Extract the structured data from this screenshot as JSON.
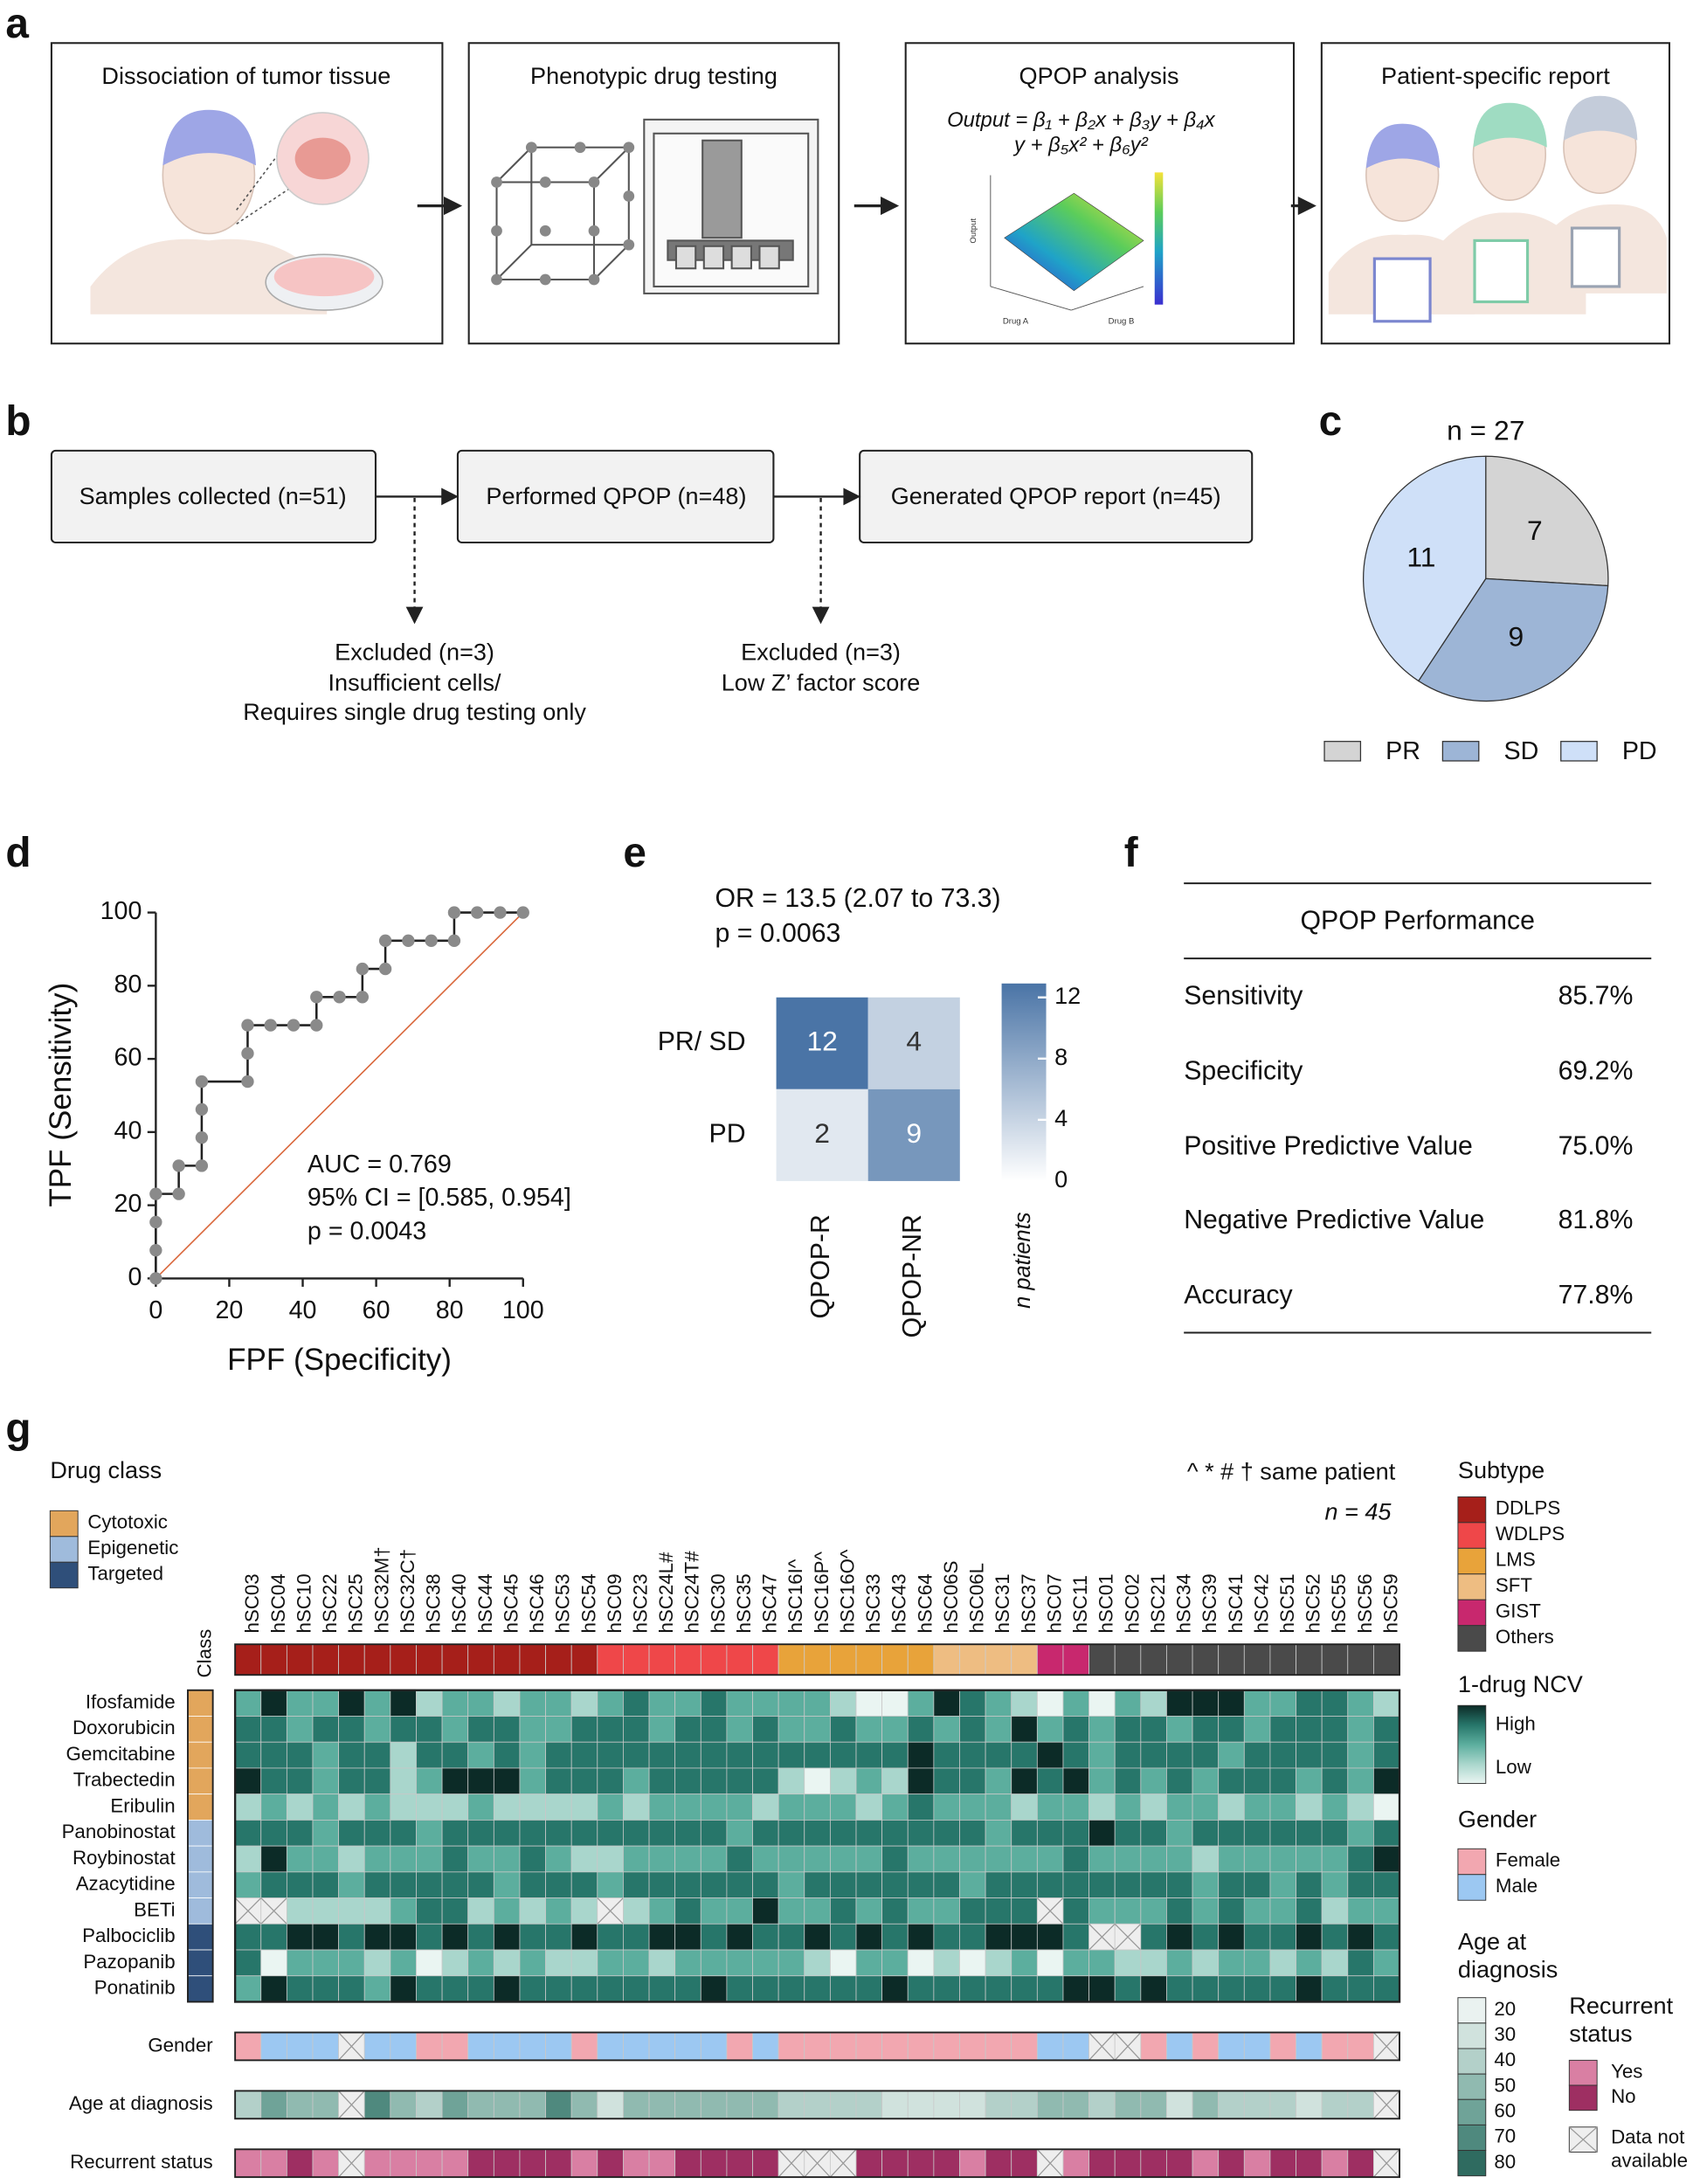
{
  "panel_labels": [
    "a",
    "b",
    "c",
    "d",
    "e",
    "f",
    "g"
  ],
  "workflow": {
    "steps": [
      "Dissociation of tumor tissue",
      "Phenotypic drug testing",
      "QPOP analysis",
      "Patient-specific report"
    ],
    "formula": [
      "Output = β₁ + β₂x + β₃y + β₄x",
      "y + β₅x² + β₆y²"
    ],
    "plot_labels": [
      "Output",
      "Drug A",
      "Drug B"
    ]
  },
  "flow": {
    "boxes": [
      "Samples collected (n=51)",
      "Performed QPOP (n=48)",
      "Generated QPOP report (n=45)"
    ],
    "exclusions": [
      [
        "Excluded (n=3)",
        "Insufficient cells/",
        "Requires single drug testing only"
      ],
      [
        "Excluded (n=3)",
        "Low Z’ factor score"
      ]
    ]
  },
  "chart_data": [
    {
      "type": "pie",
      "title": "n = 27",
      "categories": [
        "PR",
        "SD",
        "PD"
      ],
      "values": [
        7,
        9,
        11
      ],
      "colors": [
        "#d4d4d4",
        "#9db5d6",
        "#cfe0f8"
      ]
    },
    {
      "type": "line",
      "xlabel": "FPF (Specificity)",
      "ylabel": "TPF (Sensitivity)",
      "x": [
        0,
        0,
        0,
        0,
        6.25,
        6.25,
        12.5,
        12.5,
        12.5,
        12.5,
        25,
        25,
        25,
        31.25,
        37.5,
        43.75,
        43.75,
        50,
        56.25,
        56.25,
        62.5,
        62.5,
        68.75,
        75,
        81.25,
        81.25,
        87.5,
        93.75,
        100
      ],
      "values": [
        0,
        7.7,
        15.4,
        23.1,
        23.1,
        30.8,
        30.8,
        38.5,
        46.2,
        53.8,
        53.8,
        61.5,
        69.2,
        69.2,
        69.2,
        69.2,
        76.9,
        76.9,
        76.9,
        84.6,
        84.6,
        92.3,
        92.3,
        92.3,
        92.3,
        100,
        100,
        100,
        100
      ],
      "xlim": [
        0,
        100
      ],
      "ylim": [
        0,
        100
      ],
      "xticks": [
        0,
        20,
        40,
        60,
        80,
        100
      ],
      "yticks": [
        0,
        20,
        40,
        60,
        80,
        100
      ],
      "color": "#222222",
      "marker_color": "#8a8a8a",
      "reference_line_color": "#d9663a",
      "annotations": [
        "AUC = 0.769",
        "95% CI = [0.585, 0.954]",
        "p = 0.0043"
      ]
    },
    {
      "type": "heatmap",
      "annotations": [
        "OR = 13.5 (2.07 to 73.3)",
        "p = 0.0063"
      ],
      "rows": [
        "PR/ SD",
        "PD"
      ],
      "columns": [
        "QPOP-R",
        "QPOP-NR"
      ],
      "values": [
        [
          12,
          4
        ],
        [
          2,
          9
        ]
      ],
      "colorbar_label": "n patients",
      "clim": [
        0,
        12
      ],
      "cticks": [
        0,
        4,
        8,
        12
      ],
      "color": "#4a74a6"
    },
    {
      "type": "heatmap",
      "class_legend_title": "Drug class",
      "classes": [
        "Cytotoxic",
        "Epigenetic",
        "Targeted"
      ],
      "class_colors": [
        "#e2a65c",
        "#9fbbdc",
        "#2f4f7a"
      ],
      "note": "^ * # † same patient",
      "n_label": "n = 45",
      "class_label": "Class",
      "columns": [
        "hSC03",
        "hSC04",
        "hSC10",
        "hSC22",
        "hSC25",
        "hSC32M†",
        "hSC32C†",
        "hSC38",
        "hSC40",
        "hSC44",
        "hSC45",
        "hSC46",
        "hSC53",
        "hSC54",
        "hSC09",
        "hSC23",
        "hSC24L#",
        "hSC24T#",
        "hSC30",
        "hSC35",
        "hSC47",
        "hSC16I^",
        "hSC16P^",
        "hSC16O^",
        "hSC33",
        "hSC43",
        "hSC64",
        "hSC06S",
        "hSC06L",
        "hSC31",
        "hSC37",
        "hSC07",
        "hSC11",
        "hSC01",
        "hSC02",
        "hSC21",
        "hSC34",
        "hSC39",
        "hSC41",
        "hSC42",
        "hSC51",
        "hSC52",
        "hSC55",
        "hSC56",
        "hSC59"
      ],
      "subtype_title": "Subtype",
      "subtype_names": [
        "DDLPS",
        "WDLPS",
        "LMS",
        "SFT",
        "GIST",
        "Others"
      ],
      "subtype_colors": [
        "#a61f1a",
        "#ef4749",
        "#e8a33a",
        "#eebd82",
        "#c8286e",
        "#4a4a4a"
      ],
      "column_subtypes": [
        "DDLPS",
        "DDLPS",
        "DDLPS",
        "DDLPS",
        "DDLPS",
        "DDLPS",
        "DDLPS",
        "DDLPS",
        "DDLPS",
        "DDLPS",
        "DDLPS",
        "DDLPS",
        "DDLPS",
        "DDLPS",
        "WDLPS",
        "WDLPS",
        "WDLPS",
        "WDLPS",
        "WDLPS",
        "WDLPS",
        "WDLPS",
        "LMS",
        "LMS",
        "LMS",
        "LMS",
        "LMS",
        "LMS",
        "SFT",
        "SFT",
        "SFT",
        "SFT",
        "GIST",
        "GIST",
        "Others",
        "Others",
        "Others",
        "Others",
        "Others",
        "Others",
        "Others",
        "Others",
        "Others",
        "Others",
        "Others",
        "Others"
      ],
      "rows": [
        "Ifosfamide",
        "Doxorubicin",
        "Gemcitabine",
        "Trabectedin",
        "Eribulin",
        "Panobinostat",
        "Roybinostat",
        "Azacytidine",
        "BETi",
        "Palbociclib",
        "Pazopanib",
        "Ponatinib"
      ],
      "row_classes": [
        "Cytotoxic",
        "Cytotoxic",
        "Cytotoxic",
        "Cytotoxic",
        "Cytotoxic",
        "Epigenetic",
        "Epigenetic",
        "Epigenetic",
        "Epigenetic",
        "Targeted",
        "Targeted",
        "Targeted"
      ],
      "values": [
        [
          2,
          4,
          2,
          2,
          4,
          2,
          4,
          1,
          2,
          2,
          1,
          2,
          2,
          1,
          2,
          3,
          2,
          2,
          3,
          2,
          2,
          2,
          2,
          1,
          0,
          0,
          2,
          4,
          3,
          2,
          1,
          0,
          2,
          0,
          2,
          1,
          4,
          4,
          4,
          2,
          2,
          3,
          3,
          2,
          1
        ],
        [
          3,
          3,
          2,
          3,
          3,
          2,
          3,
          3,
          2,
          3,
          3,
          2,
          2,
          3,
          3,
          3,
          2,
          3,
          3,
          2,
          3,
          2,
          2,
          3,
          2,
          2,
          3,
          2,
          3,
          2,
          4,
          2,
          3,
          2,
          3,
          3,
          2,
          3,
          3,
          2,
          3,
          3,
          3,
          2,
          3
        ],
        [
          3,
          3,
          3,
          2,
          3,
          3,
          1,
          3,
          3,
          2,
          3,
          2,
          3,
          3,
          3,
          3,
          3,
          3,
          3,
          3,
          3,
          3,
          3,
          3,
          3,
          3,
          4,
          3,
          3,
          3,
          3,
          4,
          3,
          2,
          3,
          3,
          3,
          3,
          2,
          3,
          3,
          3,
          3,
          2,
          3
        ],
        [
          4,
          3,
          3,
          2,
          3,
          3,
          1,
          2,
          4,
          4,
          4,
          2,
          3,
          3,
          3,
          2,
          3,
          3,
          3,
          3,
          3,
          1,
          0,
          1,
          2,
          1,
          4,
          3,
          3,
          2,
          4,
          3,
          4,
          2,
          3,
          2,
          3,
          2,
          3,
          3,
          3,
          2,
          3,
          2,
          4
        ],
        [
          1,
          2,
          1,
          2,
          1,
          2,
          1,
          1,
          1,
          2,
          1,
          1,
          1,
          1,
          2,
          1,
          2,
          2,
          2,
          2,
          1,
          2,
          2,
          2,
          1,
          2,
          3,
          2,
          2,
          2,
          1,
          2,
          2,
          1,
          2,
          1,
          2,
          2,
          1,
          2,
          2,
          1,
          2,
          1,
          0
        ],
        [
          3,
          3,
          3,
          2,
          3,
          3,
          3,
          2,
          3,
          3,
          3,
          3,
          3,
          3,
          3,
          3,
          3,
          3,
          3,
          2,
          3,
          3,
          3,
          3,
          3,
          3,
          3,
          3,
          3,
          2,
          3,
          3,
          3,
          4,
          3,
          3,
          2,
          3,
          3,
          3,
          3,
          3,
          3,
          2,
          3
        ],
        [
          1,
          4,
          2,
          2,
          1,
          2,
          2,
          2,
          3,
          2,
          2,
          3,
          2,
          1,
          1,
          2,
          2,
          2,
          2,
          3,
          2,
          2,
          2,
          2,
          2,
          3,
          2,
          2,
          2,
          2,
          2,
          2,
          3,
          2,
          2,
          2,
          2,
          1,
          2,
          2,
          2,
          2,
          2,
          3,
          4
        ],
        [
          2,
          3,
          3,
          3,
          2,
          3,
          3,
          3,
          3,
          3,
          2,
          3,
          3,
          3,
          2,
          3,
          3,
          3,
          3,
          3,
          3,
          2,
          3,
          3,
          3,
          3,
          3,
          3,
          2,
          3,
          3,
          3,
          3,
          3,
          3,
          3,
          3,
          2,
          3,
          3,
          2,
          3,
          2,
          3,
          3
        ],
        [
          null,
          null,
          1,
          1,
          1,
          1,
          2,
          3,
          3,
          1,
          2,
          1,
          2,
          1,
          null,
          1,
          2,
          3,
          2,
          2,
          4,
          2,
          2,
          3,
          2,
          3,
          2,
          2,
          3,
          3,
          3,
          null,
          3,
          2,
          2,
          2,
          3,
          2,
          3,
          2,
          2,
          3,
          1,
          2,
          2
        ],
        [
          3,
          3,
          4,
          4,
          3,
          4,
          4,
          3,
          4,
          3,
          4,
          3,
          3,
          4,
          3,
          3,
          4,
          4,
          3,
          4,
          3,
          3,
          4,
          3,
          4,
          3,
          4,
          3,
          3,
          4,
          4,
          4,
          3,
          null,
          null,
          3,
          4,
          3,
          4,
          3,
          3,
          4,
          3,
          4,
          3
        ],
        [
          3,
          0,
          2,
          2,
          2,
          1,
          2,
          0,
          1,
          2,
          1,
          2,
          1,
          1,
          2,
          2,
          1,
          2,
          2,
          2,
          2,
          2,
          1,
          0,
          2,
          2,
          0,
          1,
          0,
          1,
          2,
          0,
          2,
          2,
          1,
          1,
          2,
          1,
          2,
          2,
          1,
          2,
          1,
          3,
          2
        ],
        [
          2,
          4,
          3,
          3,
          3,
          2,
          4,
          3,
          3,
          3,
          4,
          3,
          3,
          3,
          3,
          3,
          3,
          3,
          4,
          3,
          3,
          3,
          3,
          3,
          3,
          4,
          3,
          3,
          3,
          3,
          3,
          3,
          4,
          4,
          3,
          4,
          3,
          3,
          3,
          3,
          3,
          4,
          3,
          3,
          3
        ]
      ],
      "clim": [
        0,
        4
      ],
      "ncv_title": "1-drug NCV",
      "ncv_high": "High",
      "ncv_low": "Low",
      "ncv_colors": [
        "#eaf5f2",
        "#a9d6cc",
        "#5cae9e",
        "#27766a",
        "#0c2b27"
      ],
      "gender_title": "Gender",
      "genders": [
        "Female",
        "Male"
      ],
      "gender_colors": [
        "#f2a7b0",
        "#9cc8f2"
      ],
      "gender": [
        "Female",
        "Male",
        "Male",
        "Male",
        null,
        "Male",
        "Male",
        "Female",
        "Female",
        "Male",
        "Male",
        "Male",
        "Male",
        "Female",
        "Male",
        "Male",
        "Male",
        "Male",
        "Male",
        "Female",
        "Male",
        "Female",
        "Female",
        "Female",
        "Female",
        "Female",
        "Female",
        "Female",
        "Female",
        "Female",
        "Female",
        "Male",
        "Male",
        null,
        null,
        "Female",
        "Male",
        "Female",
        "Male",
        "Male",
        "Female",
        "Male",
        "Female",
        "Female",
        null
      ],
      "age_title": [
        "Age at",
        "diagnosis"
      ],
      "age_row_label": "Age at diagnosis",
      "age_ticks": [
        20,
        30,
        40,
        50,
        60,
        70,
        80
      ],
      "age_colors": [
        "#eaf2f0",
        "#d0e2dd",
        "#b3d0c9",
        "#90bab0",
        "#6fa398",
        "#4f897e",
        "#2f6b60"
      ],
      "age": [
        40,
        60,
        50,
        50,
        null,
        70,
        50,
        40,
        60,
        50,
        50,
        50,
        70,
        50,
        30,
        50,
        50,
        50,
        50,
        50,
        50,
        40,
        40,
        40,
        40,
        30,
        30,
        30,
        30,
        40,
        40,
        50,
        50,
        40,
        50,
        50,
        30,
        50,
        40,
        40,
        40,
        30,
        40,
        40,
        null
      ],
      "recurrent_title": [
        "Recurrent",
        "status"
      ],
      "recurrent_row_label": "Recurrent status",
      "recurrent_names": [
        "Yes",
        "No"
      ],
      "recurrent_colors": [
        "#d97fa3",
        "#9e2f62"
      ],
      "recurrent": [
        "Yes",
        "Yes",
        "No",
        "Yes",
        null,
        "Yes",
        "Yes",
        "Yes",
        "Yes",
        "No",
        "No",
        "No",
        "No",
        "Yes",
        "No",
        "Yes",
        "Yes",
        "No",
        "No",
        "No",
        "No",
        null,
        null,
        null,
        "No",
        "No",
        "No",
        "No",
        "Yes",
        "No",
        "No",
        null,
        "Yes",
        "No",
        "No",
        "No",
        "No",
        "Yes",
        "No",
        "Yes",
        "No",
        "No",
        "Yes",
        "No",
        null
      ],
      "na_label": [
        "Data not",
        "available"
      ]
    }
  ],
  "performance_table": {
    "title": "QPOP Performance",
    "rows": [
      [
        "Sensitivity",
        "85.7%"
      ],
      [
        "Specificity",
        "69.2%"
      ],
      [
        "Positive Predictive Value",
        "75.0%"
      ],
      [
        "Negative Predictive Value",
        "81.8%"
      ],
      [
        "Accuracy",
        "77.8%"
      ]
    ]
  }
}
